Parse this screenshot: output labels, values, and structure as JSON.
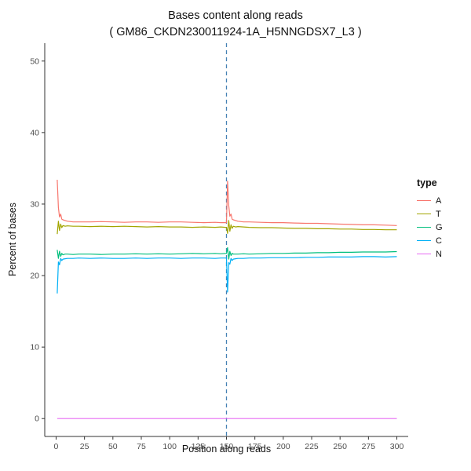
{
  "chart_data": {
    "type": "line",
    "title": "Bases content along reads",
    "subtitle": "( GM86_CKDN230011924-1A_H5NNGDSX7_L3 )",
    "xlabel": "Position along reads",
    "ylabel": "Percent of bases",
    "xlim": [
      -10,
      310
    ],
    "ylim": [
      -2.5,
      52.5
    ],
    "xticks": [
      0,
      25,
      50,
      75,
      100,
      125,
      150,
      175,
      200,
      225,
      250,
      275,
      300
    ],
    "yticks": [
      0,
      10,
      20,
      30,
      40,
      50
    ],
    "grid": false,
    "legend_title": "type",
    "legend_position": "right",
    "axis_color": "#333333",
    "tick_label_color": "#4d4d4d",
    "vline": {
      "x": 150,
      "color": "#4682B4",
      "style": "dashed"
    },
    "x": [
      1,
      2,
      3,
      4,
      5,
      6,
      8,
      10,
      15,
      20,
      30,
      40,
      50,
      60,
      70,
      80,
      90,
      100,
      110,
      120,
      130,
      140,
      145,
      149,
      150,
      151,
      152,
      153,
      154,
      155,
      156,
      158,
      160,
      165,
      170,
      180,
      190,
      200,
      210,
      220,
      230,
      240,
      250,
      260,
      270,
      280,
      290,
      300
    ],
    "series": [
      {
        "name": "A",
        "color": "#F8766D",
        "values": [
          33.4,
          29.5,
          28.2,
          28.6,
          27.9,
          27.8,
          27.7,
          27.6,
          27.5,
          27.5,
          27.5,
          27.55,
          27.5,
          27.45,
          27.5,
          27.5,
          27.45,
          27.5,
          27.5,
          27.45,
          27.4,
          27.45,
          27.4,
          27.4,
          27.4,
          33.2,
          29.8,
          28.3,
          28.6,
          27.9,
          27.8,
          27.7,
          27.6,
          27.5,
          27.5,
          27.45,
          27.4,
          27.4,
          27.35,
          27.3,
          27.3,
          27.25,
          27.2,
          27.15,
          27.1,
          27.1,
          27.05,
          27.0
        ]
      },
      {
        "name": "T",
        "color": "#A3A500",
        "values": [
          25.8,
          27.6,
          26.3,
          27.2,
          26.7,
          27.0,
          26.9,
          26.95,
          26.9,
          26.9,
          26.85,
          26.9,
          26.85,
          26.9,
          26.85,
          26.8,
          26.85,
          26.8,
          26.8,
          26.75,
          26.8,
          26.75,
          26.8,
          26.75,
          26.75,
          25.9,
          27.7,
          26.2,
          27.1,
          26.6,
          26.9,
          26.8,
          26.85,
          26.8,
          26.75,
          26.7,
          26.7,
          26.65,
          26.6,
          26.6,
          26.55,
          26.55,
          26.5,
          26.5,
          26.45,
          26.45,
          26.4,
          26.4
        ]
      },
      {
        "name": "G",
        "color": "#00BF7D",
        "values": [
          23.6,
          22.4,
          23.4,
          22.7,
          23.1,
          22.9,
          23.0,
          23.0,
          22.95,
          23.0,
          23.0,
          22.95,
          23.0,
          23.0,
          23.05,
          23.0,
          23.05,
          23.0,
          23.05,
          23.1,
          23.05,
          23.1,
          23.05,
          23.1,
          23.1,
          23.9,
          22.3,
          23.4,
          22.8,
          23.1,
          23.0,
          23.0,
          23.0,
          23.05,
          23.0,
          23.05,
          23.1,
          23.1,
          23.15,
          23.15,
          23.2,
          23.2,
          23.25,
          23.25,
          23.3,
          23.3,
          23.3,
          23.35
        ]
      },
      {
        "name": "C",
        "color": "#00B0F6",
        "values": [
          17.5,
          21.9,
          21.5,
          22.4,
          22.1,
          22.3,
          22.35,
          22.4,
          22.4,
          22.45,
          22.4,
          22.45,
          22.4,
          22.4,
          22.45,
          22.4,
          22.45,
          22.45,
          22.4,
          22.45,
          22.45,
          22.4,
          22.45,
          22.45,
          22.45,
          17.7,
          21.8,
          21.6,
          22.4,
          22.1,
          22.3,
          22.35,
          22.4,
          22.4,
          22.45,
          22.45,
          22.5,
          22.5,
          22.5,
          22.55,
          22.55,
          22.6,
          22.6,
          22.6,
          22.65,
          22.65,
          22.6,
          22.65
        ]
      },
      {
        "name": "N",
        "color": "#E76BF3",
        "values": [
          0,
          0,
          0,
          0,
          0,
          0,
          0,
          0,
          0,
          0,
          0,
          0,
          0,
          0,
          0,
          0,
          0,
          0,
          0,
          0,
          0,
          0,
          0,
          0,
          0,
          0,
          0,
          0,
          0,
          0,
          0,
          0,
          0,
          0,
          0,
          0,
          0,
          0,
          0,
          0,
          0,
          0,
          0,
          0,
          0,
          0,
          0,
          0
        ]
      }
    ]
  }
}
